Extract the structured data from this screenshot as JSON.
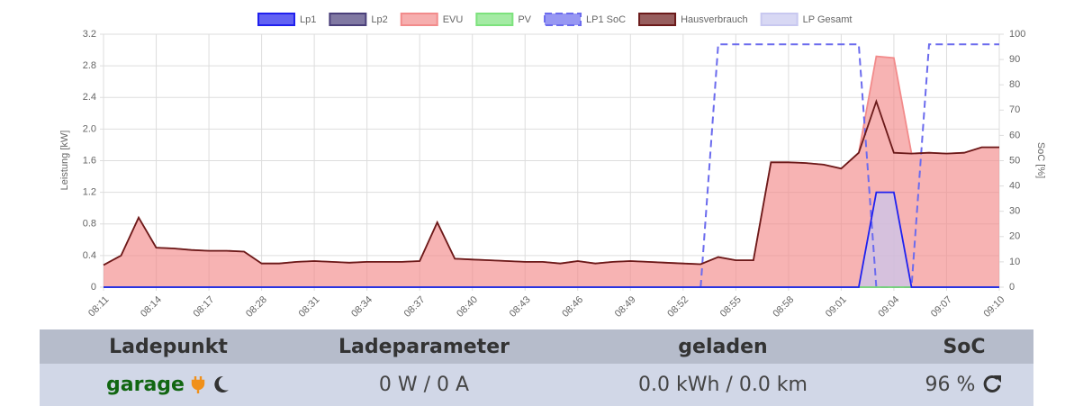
{
  "chart_data": {
    "type": "line",
    "y_label": "Leistung [kW]",
    "y2_label": "SoC [%]",
    "categories": [
      "08:11",
      null,
      null,
      "08:14",
      null,
      null,
      "08:17",
      null,
      null,
      "08:28",
      null,
      null,
      "08:31",
      null,
      null,
      "08:34",
      null,
      null,
      "08:37",
      null,
      null,
      "08:40",
      null,
      null,
      "08:43",
      null,
      null,
      "08:46",
      null,
      null,
      "08:49",
      null,
      null,
      "08:52",
      null,
      null,
      "08:55",
      null,
      null,
      "08:58",
      null,
      null,
      "09:01",
      null,
      null,
      "09:04",
      null,
      null,
      "09:07",
      null,
      null,
      "09:10"
    ],
    "series": [
      {
        "name": "Lp1",
        "color": "#2020ee",
        "values": [
          0,
          0,
          0,
          0,
          0,
          0,
          0,
          0,
          0,
          0,
          0,
          0,
          0,
          0,
          0,
          0,
          0,
          0,
          0,
          0,
          0,
          0,
          0,
          0,
          0,
          0,
          0,
          0,
          0,
          0,
          0,
          0,
          0,
          0,
          0,
          0,
          0,
          0,
          0,
          0,
          0,
          0,
          0,
          0,
          1.2,
          1.2,
          0,
          0,
          0,
          0,
          0,
          0
        ]
      },
      {
        "name": "Lp2",
        "color": "#4a3f7a",
        "values": [
          0,
          0,
          0,
          0,
          0,
          0,
          0,
          0,
          0,
          0,
          0,
          0,
          0,
          0,
          0,
          0,
          0,
          0,
          0,
          0,
          0,
          0,
          0,
          0,
          0,
          0,
          0,
          0,
          0,
          0,
          0,
          0,
          0,
          0,
          0,
          0,
          0,
          0,
          0,
          0,
          0,
          0,
          0,
          0,
          0,
          0,
          0,
          0,
          0,
          0,
          0,
          0
        ]
      },
      {
        "name": "EVU",
        "color": "#f28b8b",
        "fill": true,
        "values": [
          0.28,
          0.4,
          0.88,
          0.5,
          0.49,
          0.47,
          0.46,
          0.46,
          0.45,
          0.3,
          0.3,
          0.32,
          0.33,
          0.32,
          0.31,
          0.32,
          0.32,
          0.32,
          0.33,
          0.82,
          0.36,
          0.35,
          0.34,
          0.33,
          0.32,
          0.32,
          0.3,
          0.33,
          0.3,
          0.32,
          0.33,
          0.32,
          0.31,
          0.3,
          0.29,
          0.38,
          0.34,
          0.34,
          1.58,
          1.58,
          1.57,
          1.55,
          1.5,
          1.7,
          2.92,
          2.9,
          1.69,
          1.7,
          1.69,
          1.7,
          1.77,
          1.77
        ]
      },
      {
        "name": "PV",
        "color": "#7de27d",
        "values": [
          0,
          0,
          0,
          0,
          0,
          0,
          0,
          0,
          0,
          0,
          0,
          0,
          0,
          0,
          0,
          0,
          0,
          0,
          0,
          0,
          0,
          0,
          0,
          0,
          0,
          0,
          0,
          0,
          0,
          0,
          0,
          0,
          0,
          0,
          0,
          0,
          0,
          0,
          0,
          0,
          0,
          0,
          0,
          0,
          0,
          0,
          0,
          0,
          0,
          0,
          0,
          0
        ]
      },
      {
        "name": "LP1 SoC",
        "color": "#6b6bee",
        "dashed": true,
        "axis": "y2",
        "values": [
          null,
          null,
          null,
          null,
          null,
          null,
          null,
          null,
          null,
          null,
          null,
          null,
          null,
          null,
          null,
          null,
          null,
          null,
          null,
          null,
          null,
          null,
          null,
          null,
          null,
          null,
          null,
          null,
          null,
          null,
          null,
          null,
          null,
          null,
          0,
          96,
          96,
          96,
          96,
          96,
          96,
          96,
          96,
          96,
          0,
          0,
          0,
          96,
          96,
          96,
          96,
          96
        ]
      },
      {
        "name": "Hausverbrauch",
        "color": "#6b1a1a",
        "values": [
          0.28,
          0.4,
          0.88,
          0.5,
          0.49,
          0.47,
          0.46,
          0.46,
          0.45,
          0.3,
          0.3,
          0.32,
          0.33,
          0.32,
          0.31,
          0.32,
          0.32,
          0.32,
          0.33,
          0.82,
          0.36,
          0.35,
          0.34,
          0.33,
          0.32,
          0.32,
          0.3,
          0.33,
          0.3,
          0.32,
          0.33,
          0.32,
          0.31,
          0.3,
          0.29,
          0.38,
          0.34,
          0.34,
          1.58,
          1.58,
          1.57,
          1.55,
          1.5,
          1.7,
          2.35,
          1.7,
          1.69,
          1.7,
          1.69,
          1.7,
          1.77,
          1.77
        ]
      },
      {
        "name": "LP Gesamt",
        "color": "#c8c8f0",
        "fill": true,
        "values": [
          0,
          0,
          0,
          0,
          0,
          0,
          0,
          0,
          0,
          0,
          0,
          0,
          0,
          0,
          0,
          0,
          0,
          0,
          0,
          0,
          0,
          0,
          0,
          0,
          0,
          0,
          0,
          0,
          0,
          0,
          0,
          0,
          0,
          0,
          0,
          0,
          0,
          0,
          0,
          0,
          0,
          0,
          0,
          0,
          1.2,
          1.2,
          0,
          0,
          0,
          0,
          0,
          0
        ]
      }
    ],
    "ylim": [
      0,
      3.2
    ],
    "yticks": [
      0,
      0.4,
      0.8,
      1.2,
      1.6,
      {
        "value": 2,
        "label": "2.0"
      },
      2.4,
      2.8,
      3.2
    ],
    "y2lim": [
      0,
      100
    ],
    "y2ticks": [
      0,
      10,
      20,
      30,
      40,
      50,
      60,
      70,
      80,
      90,
      100
    ],
    "grid": true,
    "legend": "top"
  },
  "table": {
    "header": [
      "Ladepunkt",
      "Ladeparameter",
      "geladen",
      "SoC"
    ],
    "rows": [
      [
        "garage",
        "0 W / 0 A",
        "0.0 kWh / 0.0 km",
        "96 %"
      ]
    ]
  }
}
